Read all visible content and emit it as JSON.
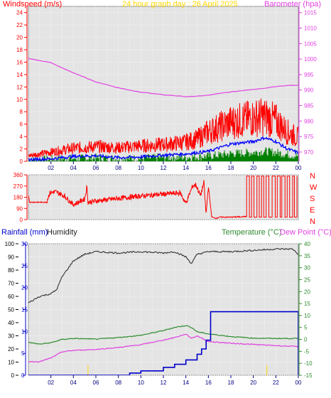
{
  "header": {
    "windspeed_title": "Windspeed (m/s)",
    "graph_title": "24 hour graph day : 26 April 2025",
    "barometer_title": "Barometer (hpa)",
    "rainfall_title": "Rainfall (mm)",
    "humidity_title": "Humidity",
    "temperature_title": "Temperature (°C)",
    "dewpoint_title": "Dew Point (°C)"
  },
  "compass": {
    "labels": [
      "N",
      "W",
      "S",
      "E",
      "N"
    ]
  },
  "colors": {
    "wind_speed": "#ff0000",
    "wind_avg": "#0000ff",
    "wind_low": "#008000",
    "barometer": "#e040e0",
    "direction": "#ff0000",
    "rainfall": "#0000cc",
    "humidity": "#333333",
    "temperature": "#2e8b2e",
    "dewpoint": "#e040e0",
    "title": "#ffd700",
    "plot_bg": "#e4e4e4"
  },
  "chart_data": [
    {
      "type": "line",
      "title": "24 hour graph day : 26 April 2025",
      "x_tick_labels": [
        "02",
        "04",
        "06",
        "08",
        "10",
        "12",
        "14",
        "16",
        "18",
        "20",
        "22",
        "00"
      ],
      "y_left_label": "Windspeed (m/s)",
      "y_left_ticks": [
        0,
        2,
        4,
        6,
        8,
        10,
        12,
        14,
        16,
        18,
        20,
        22,
        24
      ],
      "y_left_lim": [
        0,
        25
      ],
      "y_right_label": "Barometer (hpa)",
      "y_right_ticks": [
        970,
        975,
        980,
        985,
        990,
        995,
        1000,
        1005,
        1010,
        1015
      ],
      "y_right_lim": [
        967,
        1017
      ],
      "x_hours": [
        0,
        2,
        4,
        6,
        8,
        10,
        12,
        14,
        15,
        16,
        18,
        20,
        21,
        22,
        23,
        24
      ],
      "series": [
        {
          "name": "Barometer (hpa)",
          "axis": "right",
          "values": [
            1000.2,
            998.8,
            995.6,
            992.6,
            990.7,
            989.3,
            988.5,
            987.9,
            988.0,
            988.4,
            989.4,
            990.2,
            990.6,
            991.1,
            991.4,
            991.6
          ]
        },
        {
          "name": "Windspeed (m/s)",
          "axis": "left",
          "values": [
            0.9,
            1.5,
            2.1,
            2.4,
            2.2,
            2.5,
            2.7,
            3.1,
            3.6,
            4.8,
            6.3,
            7.0,
            7.2,
            6.5,
            4.8,
            3.8
          ]
        },
        {
          "axis": "left",
          "values": [
            0.3,
            0.4,
            0.8,
            0.9,
            0.6,
            0.7,
            1.0,
            1.2,
            1.4,
            1.6,
            2.8,
            3.2,
            3.8,
            3.2,
            2.0,
            1.4
          ]
        },
        {
          "axis": "left",
          "values": [
            0.0,
            0.2,
            0.3,
            0.4,
            0.3,
            0.3,
            0.5,
            0.5,
            0.6,
            0.7,
            1.1,
            1.3,
            1.5,
            1.3,
            1.0,
            0.7
          ]
        }
      ]
    },
    {
      "type": "line",
      "y_ticks": [
        0,
        90,
        180,
        270,
        360
      ],
      "y_lim": [
        0,
        360
      ],
      "x_hours": [
        0,
        0.1,
        1.6,
        1.9,
        2.4,
        3.2,
        4.0,
        5.0,
        5.2,
        5.3,
        6.0,
        8.0,
        10.0,
        12.0,
        13.5,
        14.0,
        14.6,
        14.9,
        15.3,
        15.6,
        15.8,
        16.0,
        16.3,
        16.7,
        17.0,
        18.0,
        19.4
      ],
      "values": [
        200,
        140,
        140,
        215,
        225,
        190,
        120,
        165,
        265,
        140,
        150,
        170,
        190,
        205,
        215,
        130,
        270,
        280,
        190,
        300,
        40,
        270,
        20,
        10,
        20,
        20,
        25
      ],
      "toggle_segment": {
        "from_hour": 19.4,
        "to_hour": 24.0,
        "low": 20,
        "high": 350
      }
    },
    {
      "type": "line",
      "x_tick_labels": [
        "02",
        "04",
        "06",
        "08",
        "10",
        "12",
        "14",
        "16",
        "18",
        "20",
        "22",
        "00"
      ],
      "humidity_ticks": [
        0,
        10,
        20,
        30,
        40,
        50,
        60,
        70,
        80,
        90,
        100
      ],
      "humidity_lim": [
        0,
        100
      ],
      "rain_ticks": [
        0,
        5,
        10,
        15,
        20,
        25,
        30
      ],
      "rain_lim": [
        0,
        30
      ],
      "temp_ticks": [
        -15,
        -10,
        -5,
        0,
        5,
        10,
        15,
        20,
        25,
        30,
        35,
        40
      ],
      "temp_lim": [
        -15,
        40
      ],
      "series": [
        {
          "name": "Humidity",
          "axis": "left",
          "x_hours": [
            0,
            1,
            2,
            2.5,
            3,
            4,
            5,
            6,
            8,
            10,
            12,
            13,
            14,
            14.5,
            15,
            16,
            18,
            20,
            22,
            23.5,
            24
          ],
          "values": [
            55,
            60,
            62,
            65,
            75,
            87,
            92,
            94,
            93,
            94,
            93,
            94,
            90,
            85,
            92,
            94,
            94,
            95,
            96,
            96,
            92
          ]
        },
        {
          "name": "Temperature (°C)",
          "axis": "right",
          "x_hours": [
            0,
            1,
            2,
            3,
            4,
            6,
            8,
            10,
            12,
            13,
            14,
            14.5,
            15,
            16,
            18,
            20,
            22,
            24
          ],
          "values": [
            -1.2,
            -2.0,
            -1.4,
            0.0,
            0.4,
            0.1,
            0.8,
            1.7,
            3.7,
            5.0,
            5.8,
            5.0,
            3.2,
            2.3,
            1.2,
            0.5,
            0.4,
            0.4
          ]
        },
        {
          "name": "Dew Point (°C)",
          "axis": "right",
          "x_hours": [
            0,
            1,
            2,
            3,
            4,
            6,
            8,
            10,
            12,
            13,
            14,
            14.5,
            15,
            16,
            18,
            20,
            22,
            24
          ],
          "values": [
            -9.3,
            -9.3,
            -7.8,
            -5.2,
            -4.6,
            -4.2,
            -3.4,
            -2.2,
            -0.3,
            0.8,
            2.2,
            0.5,
            1.5,
            -0.9,
            -1.6,
            -2.1,
            -2.6,
            -3.0
          ]
        },
        {
          "name": "Rainfall (mm)",
          "axis": "rain",
          "x_hours": [
            0,
            8,
            9,
            10,
            12,
            13,
            14,
            15,
            15.4,
            15.8,
            16.2,
            24,
            24
          ],
          "values": [
            0,
            0,
            0.5,
            1.0,
            1.8,
            2.5,
            3.5,
            4.8,
            6.0,
            8.0,
            14.5,
            14.5,
            0
          ]
        }
      ]
    }
  ]
}
